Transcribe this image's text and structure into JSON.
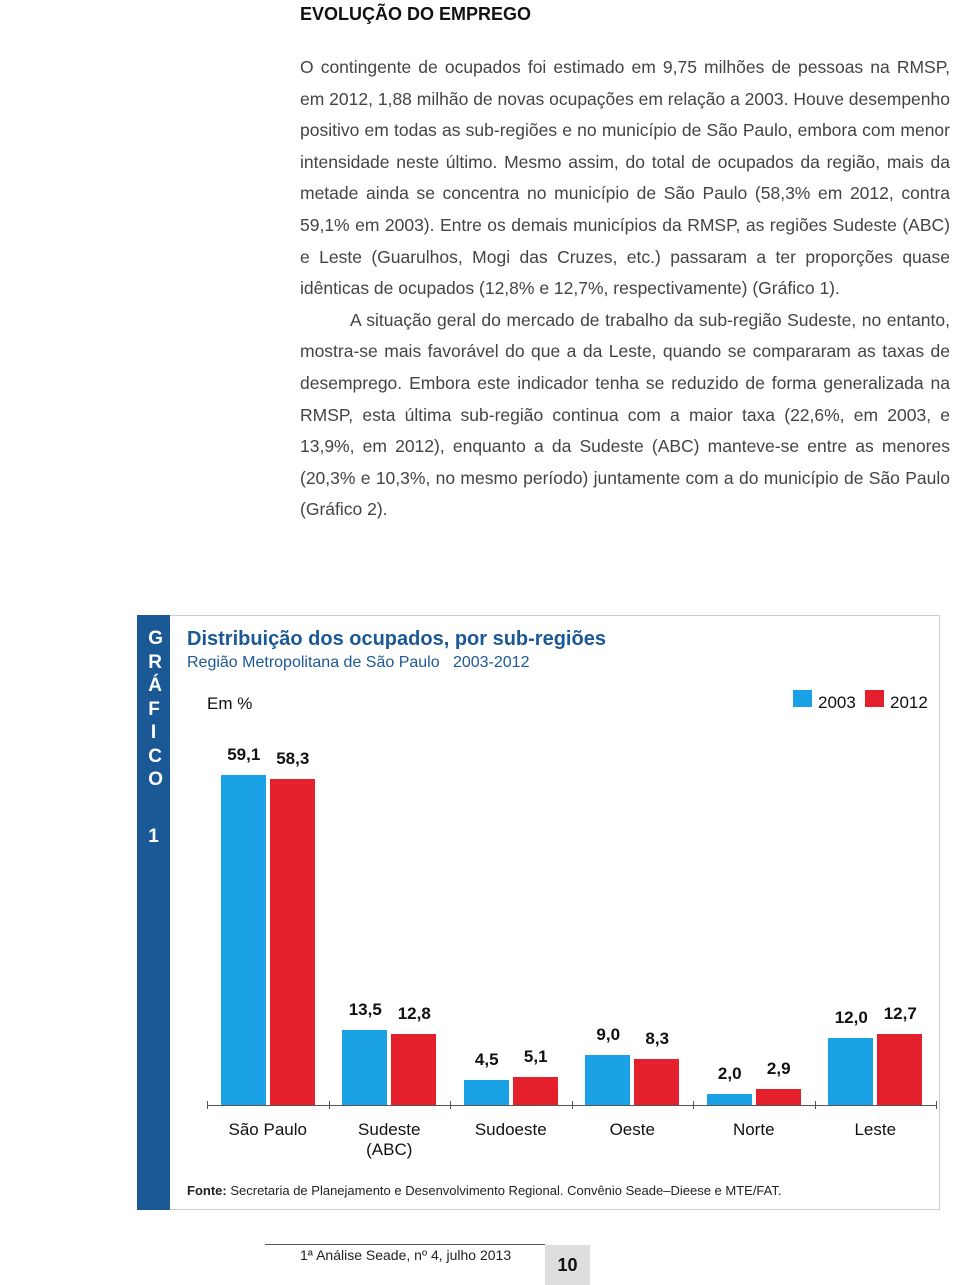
{
  "section_title": "EVOLUÇÃO DO EMPREGO",
  "paragraphs": [
    "O contingente de ocupados foi estimado em 9,75 milhões de pessoas na RMSP, em 2012, 1,88 milhão de novas ocupações em relação a 2003. Houve desempenho positivo em todas as sub-regiões e no município de São Paulo, embora com menor intensidade neste último. Mesmo assim, do total de ocupados da região, mais da metade ainda se concentra no município de São Paulo (58,3% em 2012, contra 59,1% em 2003). Entre os demais municípios da RMSP, as regiões Sudeste (ABC) e Leste (Guarulhos, Mogi das Cruzes, etc.) passaram a ter proporções quase idênticas de ocupados (12,8% e 12,7%, respectivamente) (Gráfico 1).",
    "A situação geral do mercado de trabalho da sub-região Sudeste, no entanto, mostra-se mais favorável do que a da Leste, quando se compararam as taxas de desemprego. Embora este indicador tenha se reduzido de forma generalizada na RMSP, esta última sub-região continua com a maior taxa (22,6%, em 2003, e 13,9%, em 2012), enquanto a da Sudeste (ABC) manteve-se entre as menores (20,3% e 10,3%, no mesmo período) juntamente com a do município de São Paulo (Gráfico 2)."
  ],
  "figure": {
    "label_word": "GRÁFICO",
    "label_number": "1",
    "source_label": "Fonte:",
    "source": "Secretaria de Planejamento e Desenvolvimento Regional. Convênio Seade–Dieese e MTE/FAT."
  },
  "chart_data": {
    "type": "bar",
    "title": "Distribuição dos ocupados, por sub-regiões",
    "subtitle": "Região Metropolitana de São Paulo   2003-2012",
    "unit_label": "Em %",
    "categories": [
      "São Paulo",
      "Sudeste (ABC)",
      "Sudoeste",
      "Oeste",
      "Norte",
      "Leste"
    ],
    "series": [
      {
        "name": "2003",
        "color": "#1ba1e6",
        "values": [
          59.1,
          13.5,
          4.5,
          9.0,
          2.0,
          12.0
        ],
        "value_labels": [
          "59,1",
          "13,5",
          "4,5",
          "9,0",
          "2,0",
          "12,0"
        ]
      },
      {
        "name": "2012",
        "color": "#e3202b",
        "values": [
          58.3,
          12.8,
          5.1,
          8.3,
          2.9,
          12.7
        ],
        "value_labels": [
          "58,3",
          "12,8",
          "5,1",
          "8,3",
          "2,9",
          "12,7"
        ]
      }
    ],
    "legend": "top-right"
  },
  "footer": {
    "publication": "1ª Análise Seade, nº 4, julho 2013",
    "page_number": "10"
  }
}
